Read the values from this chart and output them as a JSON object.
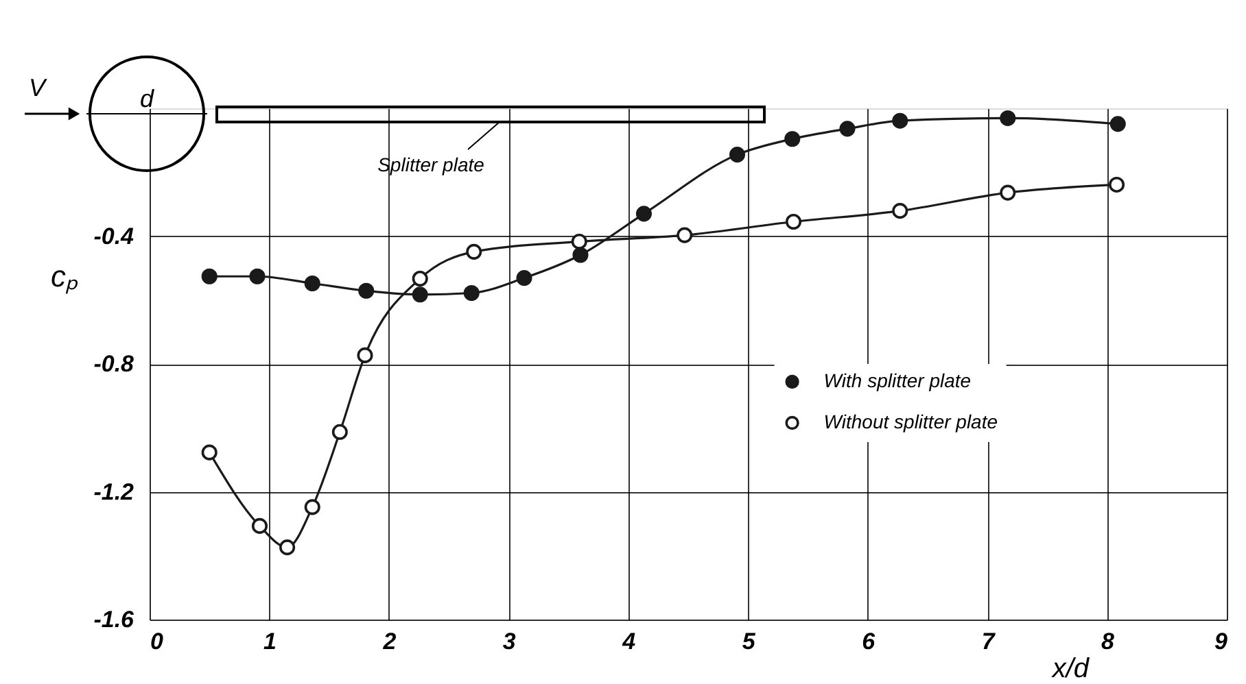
{
  "chart_data": {
    "type": "line",
    "xlabel": "x/d",
    "ylabel": "cₚ",
    "xlim": [
      0,
      9
    ],
    "xticks": [
      0,
      1,
      2,
      3,
      4,
      5,
      6,
      7,
      8,
      9
    ],
    "ylim": [
      -1.6,
      0
    ],
    "yticks": [
      -1.6,
      -1.2,
      -0.8,
      -0.4
    ],
    "grid": true,
    "legend": "right",
    "marker": "circle",
    "line_style": "solid",
    "annotations": [
      "V",
      "d",
      "Splitter plate"
    ],
    "series": [
      {
        "name": "With splitter plate",
        "color": "#1a1a1a",
        "x": [
          0.5,
          0.9,
          1.36,
          1.81,
          2.26,
          2.69,
          3.13,
          3.6,
          4.13,
          4.91,
          5.37,
          5.83,
          6.27,
          7.17,
          8.09
        ],
        "values": [
          -0.526,
          -0.526,
          -0.548,
          -0.571,
          -0.583,
          -0.578,
          -0.531,
          -0.459,
          -0.33,
          -0.145,
          -0.096,
          -0.064,
          -0.039,
          -0.031,
          -0.049
        ]
      },
      {
        "name": "Without splitter plate",
        "color": "#1a1a1a",
        "x": [
          0.5,
          0.92,
          1.15,
          1.36,
          1.59,
          1.8,
          2.26,
          2.71,
          3.59,
          4.47,
          5.38,
          6.27,
          7.17,
          8.08
        ],
        "values": [
          -1.077,
          -1.307,
          -1.374,
          -1.248,
          -1.013,
          -0.773,
          -0.533,
          -0.449,
          -0.417,
          -0.397,
          -0.355,
          -0.321,
          -0.264,
          -0.239
        ]
      }
    ]
  }
}
